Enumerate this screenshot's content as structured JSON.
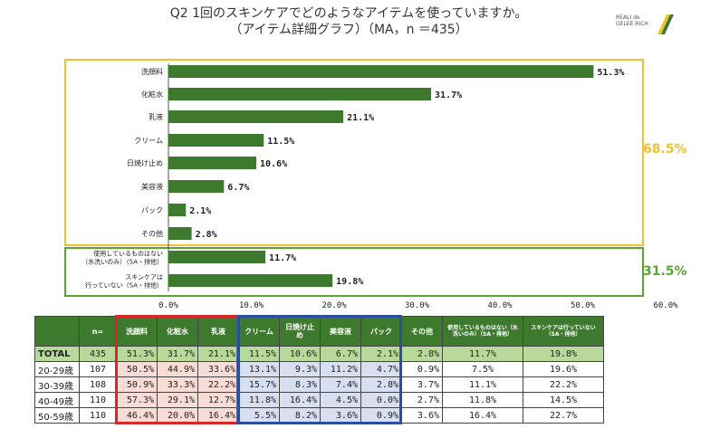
{
  "title": {
    "line1": "Q2 1回のスキンケアでどのようなアイテムを使っていますか。",
    "line2": "（アイテム詳細グラフ）（MA，n ＝435）"
  },
  "logo": {
    "line1": "RÉALI de",
    "line2": "GELEE RICH"
  },
  "colors": {
    "bar": "#3e7a2e",
    "group_a": "#f2c12e",
    "group_b": "#5aa532",
    "red_box": "#d9262a",
    "blue_box": "#2b4ea0",
    "header": "#3e7a2e",
    "total_row": "#b7d99b"
  },
  "groups": [
    {
      "label": "68.5%"
    },
    {
      "label": "31.5%"
    }
  ],
  "chart_data": {
    "type": "bar",
    "orientation": "horizontal",
    "categories": [
      "洗顔料",
      "化粧水",
      "乳液",
      "クリーム",
      "日焼け止め",
      "美容液",
      "パック",
      "その他",
      "使用しているものはない\n（水洗いのみ）（SA・排他）",
      "スキンケアは\n行っていない（SA・排他）"
    ],
    "values": [
      51.3,
      31.7,
      21.1,
      11.5,
      10.6,
      6.7,
      2.1,
      2.8,
      11.7,
      19.8
    ],
    "value_labels": [
      "51.3%",
      "31.7%",
      "21.1%",
      "11.5%",
      "10.6%",
      "6.7%",
      "2.1%",
      "2.8%",
      "11.7%",
      "19.8%"
    ],
    "xlim": [
      0,
      60
    ],
    "xticks": [
      "0.0%",
      "10.0%",
      "20.0%",
      "30.0%",
      "40.0%",
      "50.0%",
      "60.0%"
    ],
    "grid": false
  },
  "table": {
    "headers": [
      "",
      "n=",
      "洗顔料",
      "化粧水",
      "乳液",
      "クリーム",
      "日焼け止め",
      "美容液",
      "パック",
      "その他",
      "使用しているものはない（水洗いのみ）（SA・排他）",
      "スキンケアは行っていない（SA・排他）"
    ],
    "rows": [
      [
        "TOTAL",
        "435",
        "51.3%",
        "31.7%",
        "21.1%",
        "11.5%",
        "10.6%",
        "6.7%",
        "2.1%",
        "2.8%",
        "11.7%",
        "19.8%"
      ],
      [
        "20-29歳",
        "107",
        "50.5%",
        "44.9%",
        "33.6%",
        "13.1%",
        "9.3%",
        "11.2%",
        "4.7%",
        "0.9%",
        "7.5%",
        "19.6%"
      ],
      [
        "30-39歳",
        "108",
        "50.9%",
        "33.3%",
        "22.2%",
        "15.7%",
        "8.3%",
        "7.4%",
        "2.8%",
        "3.7%",
        "11.1%",
        "22.2%"
      ],
      [
        "40-49歳",
        "110",
        "57.3%",
        "29.1%",
        "12.7%",
        "11.8%",
        "16.4%",
        "4.5%",
        "0.0%",
        "2.7%",
        "11.8%",
        "14.5%"
      ],
      [
        "50-59歳",
        "110",
        "46.4%",
        "20.0%",
        "16.4%",
        "5.5%",
        "8.2%",
        "3.6%",
        "0.9%",
        "3.6%",
        "16.4%",
        "22.7%"
      ]
    ]
  }
}
